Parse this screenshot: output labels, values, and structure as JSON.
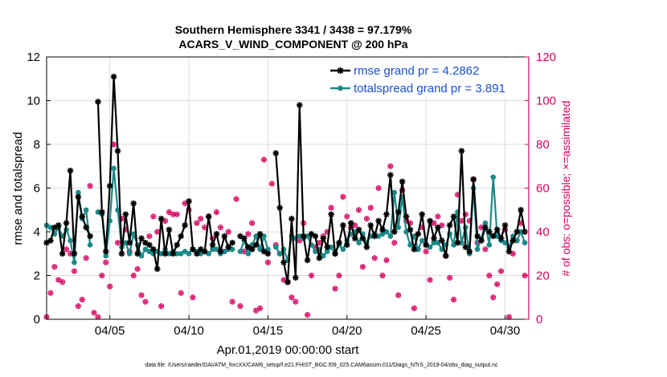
{
  "chart_data": {
    "type": "line",
    "title": "Southern Hemisphere 3341 / 3438 = 97.179%",
    "subtitle": "ACARS_V_WIND_COMPONENT @ 200 hPa",
    "xlabel": "Apr.01,2019 00:00:00 start",
    "ylabel": "rmse and totalspread",
    "ylabel_right": "# of obs: o=possible; ×=assimilated",
    "footnote": "data file: /Users/raeder/DAI/ATM_forcXX/CAM6_setup/f.e21.FHIST_BGC.f09_025.CAM6assim.011/Diags_NTrS_2019-04/obs_diag_output.nc",
    "xlim": [
      1,
      31.5
    ],
    "ylim": [
      0,
      12
    ],
    "ylim_right": [
      0,
      120
    ],
    "x_ticks": [
      5,
      10,
      15,
      20,
      25,
      30
    ],
    "x_tick_labels": [
      "04/05",
      "04/10",
      "04/15",
      "04/20",
      "04/25",
      "04/30"
    ],
    "y_ticks": [
      0,
      2,
      4,
      6,
      8,
      10,
      12
    ],
    "y_tick_labels": [
      "0",
      "2",
      "4",
      "6",
      "8",
      "10",
      "12"
    ],
    "y_ticks_right": [
      0,
      20,
      40,
      60,
      80,
      100,
      120
    ],
    "y_tick_labels_right": [
      "0",
      "20",
      "40",
      "60",
      "80",
      "100",
      "120"
    ],
    "legend_position": "top-right",
    "x": [
      1.0,
      1.25,
      1.5,
      1.75,
      2.0,
      2.25,
      2.5,
      2.75,
      3.0,
      3.25,
      3.5,
      3.75,
      4.0,
      4.25,
      4.5,
      4.75,
      5.0,
      5.25,
      5.5,
      5.75,
      6.0,
      6.25,
      6.5,
      6.75,
      7.0,
      7.25,
      7.5,
      7.75,
      8.0,
      8.25,
      8.5,
      8.75,
      9.0,
      9.25,
      9.5,
      9.75,
      10.0,
      10.25,
      10.5,
      10.75,
      11.0,
      11.25,
      11.5,
      11.75,
      12.0,
      12.25,
      12.5,
      12.75,
      13.0,
      13.25,
      13.5,
      13.75,
      14.0,
      14.25,
      14.5,
      14.75,
      15.0,
      15.25,
      15.5,
      15.75,
      16.0,
      16.25,
      16.5,
      16.75,
      17.0,
      17.25,
      17.5,
      17.75,
      18.0,
      18.25,
      18.5,
      18.75,
      19.0,
      19.25,
      19.5,
      19.75,
      20.0,
      20.25,
      20.5,
      20.75,
      21.0,
      21.25,
      21.5,
      21.75,
      22.0,
      22.25,
      22.5,
      22.75,
      23.0,
      23.25,
      23.5,
      23.75,
      24.0,
      24.25,
      24.5,
      24.75,
      25.0,
      25.25,
      25.5,
      25.75,
      26.0,
      26.25,
      26.5,
      26.75,
      27.0,
      27.25,
      27.5,
      27.75,
      28.0,
      28.25,
      28.5,
      28.75,
      29.0,
      29.25,
      29.5,
      29.75,
      30.0,
      30.25,
      30.5,
      30.75,
      31.0,
      31.25
    ],
    "series": [
      {
        "name": "rmse grand pr = 4.2862",
        "color": "#000000",
        "marker": "asterisk",
        "values": [
          3.5,
          3.6,
          4.2,
          4.3,
          3.0,
          4.4,
          6.8,
          3.0,
          5.6,
          4.7,
          4.2,
          3.8,
          null,
          9.95,
          4.9,
          3.1,
          6.1,
          11.1,
          7.7,
          3.0,
          4.8,
          3.5,
          5.3,
          3.0,
          3.7,
          3.5,
          3.4,
          3.2,
          2.3,
          4.6,
          3.0,
          4.1,
          3.0,
          3.4,
          3.8,
          4.3,
          5.4,
          3.2,
          3.0,
          3.2,
          3.1,
          4.7,
          3.4,
          3.9,
          3.1,
          3.8,
          3.3,
          3.5,
          null,
          3.8,
          3.7,
          3.3,
          3.2,
          3.4,
          3.9,
          3.1,
          3.0,
          null,
          7.6,
          5.1,
          2.6,
          1.7,
          4.6,
          1.9,
          9.8,
          3.8,
          2.7,
          3.9,
          3.8,
          2.8,
          3.7,
          3.3,
          4.8,
          3.0,
          3.5,
          4.3,
          3.4,
          4.4,
          3.7,
          4.1,
          3.7,
          3.3,
          4.3,
          3.8,
          4.5,
          4.1,
          4.8,
          6.6,
          4.0,
          4.9,
          6.3,
          4.7,
          4.1,
          3.2,
          3.9,
          4.8,
          3.4,
          4.5,
          3.7,
          4.2,
          3.6,
          2.9,
          4.3,
          4.7,
          3.5,
          7.7,
          3.3,
          3.1,
          6.4,
          3.8,
          3.6,
          4.2,
          4.0,
          3.8,
          4.1,
          3.7,
          4.3,
          3.1,
          3.6,
          4.0,
          5.0,
          4.0
        ]
      },
      {
        "name": "totalspread grand pr = 3.891",
        "color": "#1a8a8a",
        "marker": "circle",
        "values": [
          4.3,
          4.2,
          3.9,
          4.2,
          3.8,
          4.1,
          3.6,
          2.6,
          5.8,
          4.6,
          5.0,
          3.4,
          null,
          4.9,
          4.8,
          2.9,
          4.5,
          6.9,
          5.0,
          3.3,
          3.5,
          3.0,
          3.9,
          3.4,
          2.9,
          3.2,
          3.1,
          3.0,
          3.1,
          3.0,
          3.2,
          3.0,
          3.1,
          3.0,
          3.0,
          3.1,
          3.0,
          3.2,
          3.1,
          3.0,
          3.1,
          3.0,
          3.2,
          3.2,
          3.0,
          3.1,
          3.2,
          3.2,
          null,
          3.1,
          3.6,
          3.0,
          3.4,
          3.8,
          3.2,
          3.8,
          3.2,
          null,
          3.3,
          3.0,
          3.2,
          2.7,
          3.8,
          3.7,
          3.8,
          3.7,
          3.8,
          3.4,
          3.1,
          3.2,
          2.9,
          3.1,
          3.3,
          3.0,
          3.4,
          3.2,
          3.6,
          3.9,
          4.0,
          3.5,
          3.9,
          3.5,
          3.8,
          3.9,
          3.8,
          3.9,
          4.0,
          3.8,
          5.8,
          4.2,
          5.6,
          4.0,
          3.4,
          3.8,
          3.2,
          3.6,
          3.4,
          3.3,
          3.5,
          3.5,
          3.2,
          3.4,
          3.9,
          3.4,
          4.9,
          3.5,
          4.2,
          3.0,
          6.0,
          3.2,
          3.7,
          4.4,
          3.4,
          6.5,
          3.8,
          3.6,
          3.5,
          3.3,
          3.8,
          3.6,
          4.0,
          3.5
        ]
      }
    ],
    "obs_series": [
      {
        "name": "possible",
        "color": "#d6005f",
        "marker": "o",
        "values": [
          1,
          12,
          24,
          18,
          17,
          32,
          30,
          22,
          6,
          9,
          28,
          61,
          3,
          1,
          20,
          26,
          15,
          80,
          35,
          46,
          41,
          31,
          20,
          23,
          11,
          8,
          38,
          47,
          40,
          6,
          45,
          49,
          48,
          48,
          12,
          53,
          50,
          10,
          44,
          46,
          42,
          47,
          37,
          49,
          42,
          31,
          40,
          8,
          55,
          6,
          31,
          39,
          44,
          4,
          5,
          73,
          26,
          62,
          34,
          30,
          18,
          17,
          10,
          8,
          36,
          44,
          2,
          20,
          33,
          35,
          38,
          40,
          51,
          14,
          20,
          56,
          47,
          42,
          43,
          50,
          24,
          46,
          51,
          28,
          60,
          20,
          27,
          70,
          35,
          11,
          59,
          45,
          44,
          5,
          32,
          42,
          31,
          18,
          44,
          47,
          43,
          29,
          19,
          9,
          57,
          45,
          48,
          45,
          64,
          35,
          42,
          32,
          20,
          10,
          16,
          22,
          41,
          1,
          30,
          36,
          44,
          20
        ]
      },
      {
        "name": "assimilated",
        "color": "#d6005f",
        "marker": "asterisk",
        "values": [
          1,
          12,
          24,
          18,
          17,
          32,
          30,
          22,
          6,
          9,
          28,
          61,
          3,
          1,
          20,
          26,
          15,
          80,
          35,
          46,
          41,
          31,
          20,
          23,
          11,
          8,
          38,
          47,
          40,
          6,
          45,
          49,
          48,
          48,
          12,
          53,
          50,
          10,
          44,
          46,
          42,
          47,
          37,
          49,
          42,
          31,
          40,
          8,
          55,
          6,
          31,
          39,
          44,
          4,
          5,
          73,
          26,
          62,
          34,
          30,
          18,
          17,
          10,
          8,
          36,
          44,
          2,
          20,
          33,
          35,
          38,
          40,
          51,
          14,
          20,
          56,
          47,
          42,
          43,
          50,
          24,
          46,
          51,
          28,
          60,
          20,
          27,
          70,
          35,
          11,
          59,
          45,
          44,
          5,
          32,
          42,
          31,
          18,
          44,
          47,
          43,
          29,
          19,
          9,
          57,
          45,
          48,
          45,
          64,
          35,
          42,
          32,
          20,
          10,
          16,
          22,
          41,
          1,
          30,
          36,
          44,
          20
        ]
      }
    ]
  }
}
